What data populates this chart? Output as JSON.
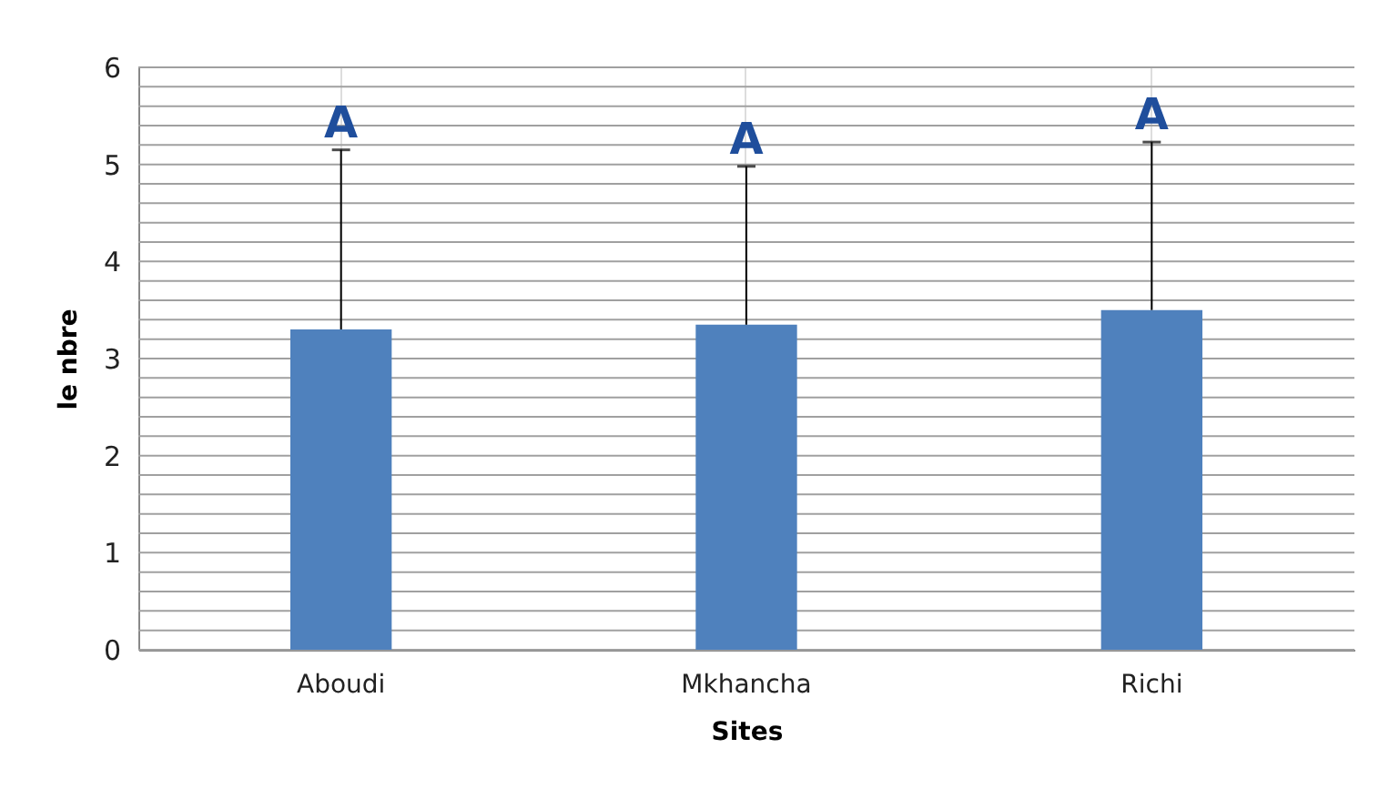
{
  "chart_data": {
    "type": "bar",
    "xlabel": "Sites",
    "ylabel": "le nbre",
    "categories": [
      "Aboudi",
      "Mkhancha",
      "Richi"
    ],
    "values": [
      3.3,
      3.35,
      3.5
    ],
    "color": "#4f81bd",
    "errors": [
      [
        3.3,
        5.15
      ],
      [
        3.35,
        4.98
      ],
      [
        3.5,
        5.23
      ]
    ],
    "ylim": [
      0,
      6
    ],
    "yticks": [
      0,
      {
        "value": 0.2,
        "label": null
      },
      {
        "value": 0.4,
        "label": null
      },
      {
        "value": 0.6,
        "label": null
      },
      {
        "value": 0.8,
        "label": null
      },
      1,
      {
        "value": 1.2,
        "label": null
      },
      {
        "value": 1.4,
        "label": null
      },
      {
        "value": 1.6,
        "label": null
      },
      {
        "value": 1.8,
        "label": null
      },
      2,
      {
        "value": 2.2,
        "label": null
      },
      {
        "value": 2.4,
        "label": null
      },
      {
        "value": 2.6,
        "label": null
      },
      {
        "value": 2.8,
        "label": null
      },
      3,
      {
        "value": 3.2,
        "label": null
      },
      {
        "value": 3.4,
        "label": null
      },
      {
        "value": 3.6,
        "label": null
      },
      {
        "value": 3.8,
        "label": null
      },
      4,
      {
        "value": 4.2,
        "label": null
      },
      {
        "value": 4.4,
        "label": null
      },
      {
        "value": 4.6,
        "label": null
      },
      {
        "value": 4.8,
        "label": null
      },
      5,
      {
        "value": 5.2,
        "label": null
      },
      {
        "value": 5.4,
        "label": null
      },
      {
        "value": 5.6,
        "label": null
      },
      {
        "value": 5.8,
        "label": null
      },
      6
    ],
    "grid": true,
    "annotations": [
      "A",
      "A",
      "A"
    ]
  }
}
